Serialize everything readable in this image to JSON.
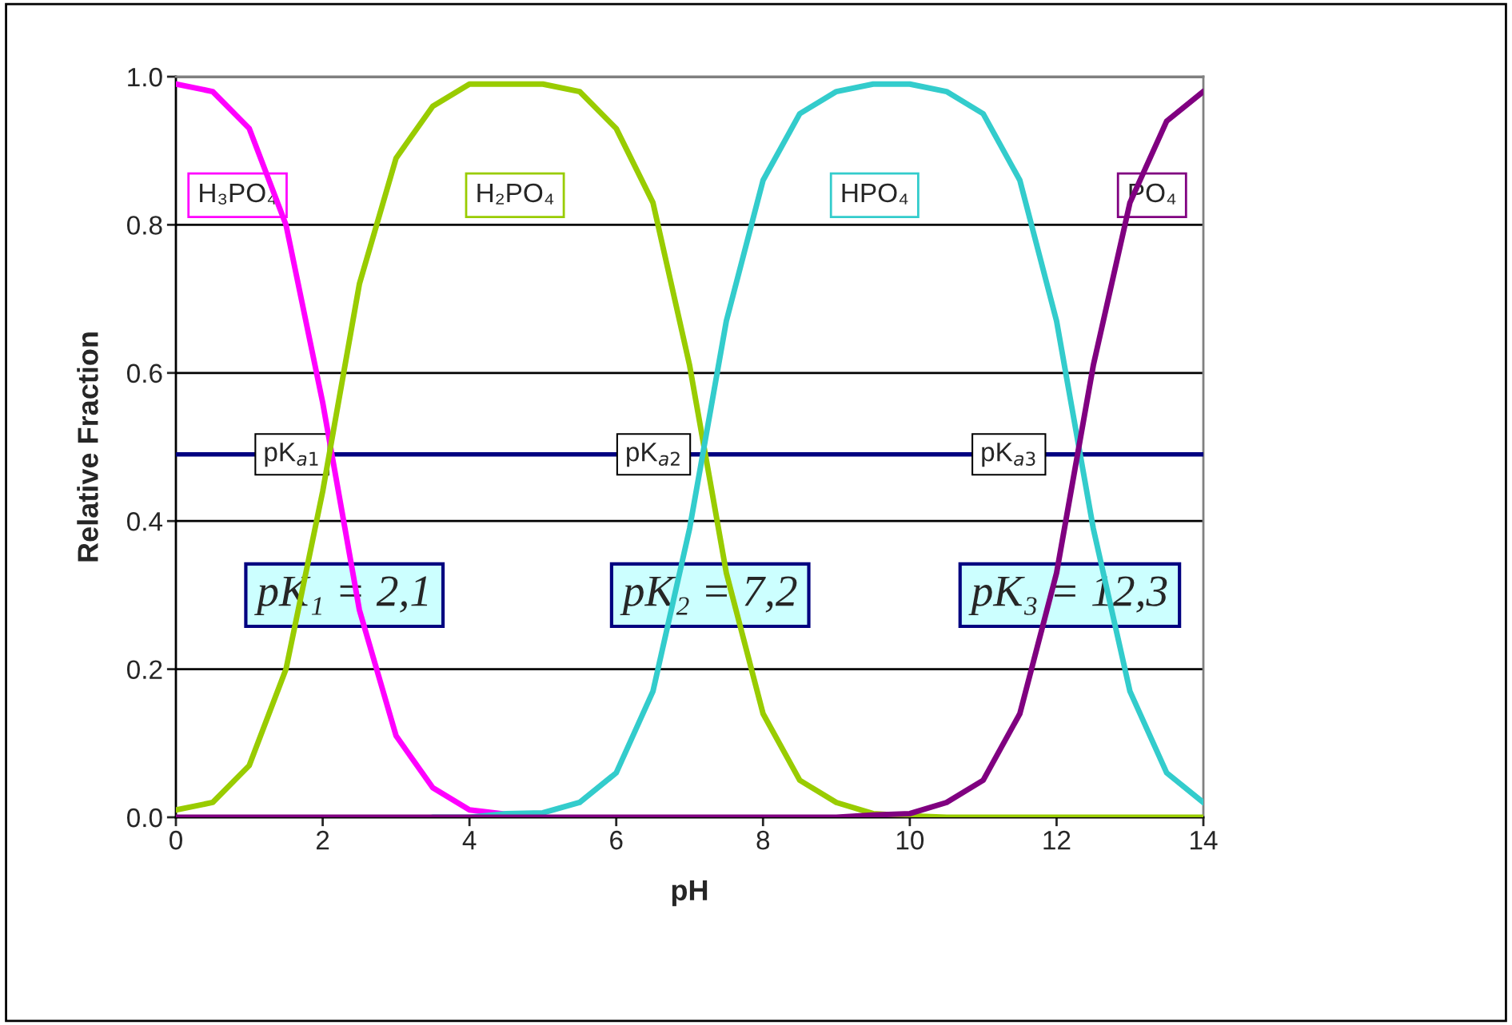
{
  "chart_data": {
    "type": "line",
    "xlabel": "pH",
    "ylabel": "Relative Fraction",
    "x": [
      0,
      0.5,
      1,
      1.5,
      2,
      2.5,
      3,
      3.5,
      4,
      4.5,
      5,
      5.5,
      6,
      6.5,
      7,
      7.5,
      8,
      8.5,
      9,
      9.5,
      10,
      10.5,
      11,
      11.5,
      12,
      12.5,
      13,
      13.5,
      14
    ],
    "series": [
      {
        "name": "H₃PO₄",
        "color": "#ff00ff",
        "values": [
          0.99,
          0.98,
          0.93,
          0.8,
          0.56,
          0.28,
          0.11,
          0.04,
          0.01,
          0.004,
          null,
          null,
          null,
          null,
          null,
          null,
          null,
          null,
          null,
          null,
          null,
          null,
          null,
          null,
          null,
          null,
          null,
          null,
          null
        ]
      },
      {
        "name": "H₂PO₄",
        "color": "#99cc00",
        "values": [
          0.01,
          0.02,
          0.07,
          0.2,
          0.44,
          0.72,
          0.89,
          0.96,
          0.99,
          0.99,
          0.99,
          0.98,
          0.93,
          0.83,
          0.61,
          0.33,
          0.14,
          0.05,
          0.02,
          0.005,
          0.002,
          0,
          0,
          0,
          0,
          0,
          0,
          0,
          0
        ]
      },
      {
        "name": "HPO₄",
        "color": "#33cccc",
        "values": [
          null,
          null,
          null,
          null,
          null,
          null,
          null,
          0,
          0,
          0.005,
          0.006,
          0.02,
          0.06,
          0.17,
          0.39,
          0.67,
          0.86,
          0.95,
          0.98,
          0.99,
          0.99,
          0.98,
          0.95,
          0.86,
          0.67,
          0.39,
          0.17,
          0.06,
          0.02
        ]
      },
      {
        "name": "PO₄",
        "color": "#800080",
        "values": [
          0,
          0,
          0,
          0,
          0,
          0,
          0,
          0,
          0,
          0,
          0,
          0,
          0,
          0,
          0,
          0,
          0,
          0,
          0,
          0.003,
          0.005,
          0.02,
          0.05,
          0.14,
          0.33,
          0.61,
          0.83,
          0.94,
          0.98
        ]
      }
    ],
    "xlim": [
      0,
      14
    ],
    "xticks": [
      0,
      2,
      4,
      6,
      8,
      10,
      12,
      14
    ],
    "ylim": [
      0,
      1
    ],
    "yticks": [
      {
        "value": 0,
        "label": "0.0"
      },
      {
        "value": 0.2,
        "label": "0.2"
      },
      {
        "value": 0.4,
        "label": "0.4"
      },
      {
        "value": 0.6,
        "label": "0.6"
      },
      {
        "value": 0.8,
        "label": "0.8"
      },
      {
        "value": 1,
        "label": "1.0"
      }
    ],
    "grid": "y",
    "ref_lines": [
      {
        "axis": "y",
        "value": 0.49,
        "color": "#000080"
      }
    ],
    "annotations": [
      {
        "text": "pK$_{a1}$",
        "x": 1.58,
        "y": 0.49
      },
      {
        "text": "pK$_{a2}$",
        "x": 6.51,
        "y": 0.49
      },
      {
        "text": "pK$_{a3}$",
        "x": 11.35,
        "y": 0.49
      },
      "pK₁ = 2,1",
      "pK₂ = 7,2",
      "pK₃ = 12,3"
    ]
  }
}
